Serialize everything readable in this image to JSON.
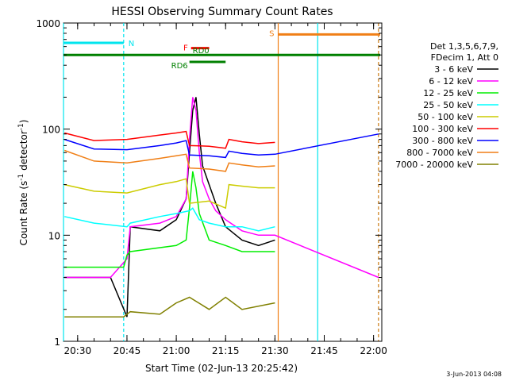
{
  "chart_data": {
    "type": "line",
    "title": "HESSI Observing Summary Count Rates",
    "xlabel": "Start Time (02-Jun-13 20:25:42)",
    "ylabel_main": "Count Rate (s",
    "ylabel_sup1": "-1",
    "ylabel_mid": " detector",
    "ylabel_sup2": "-1",
    "ylabel_end": ")",
    "yscale": "log",
    "ylim": [
      1,
      1000
    ],
    "xlim": [
      "20:25:42",
      "22:02:30"
    ],
    "x_ticks": [
      "20:30",
      "20:45",
      "21:00",
      "21:15",
      "21:30",
      "21:45",
      "22:00"
    ],
    "y_ticks": [
      "1",
      "10",
      "100",
      "1000"
    ],
    "footer_date": "3-Jun-2013 04:08",
    "legend_header": [
      "Det 1,3,5,6,7,9,",
      "FDecim 1, Att 0"
    ],
    "flags": [
      {
        "label": "N",
        "color": "#00e5ee",
        "start": "20:25:42",
        "end": "20:44:00",
        "level": 650
      },
      {
        "label": "S",
        "color": "#f07f16",
        "start": "21:31:00",
        "end": "22:02:00",
        "level": 780
      },
      {
        "label": "F",
        "color": "#ff0000",
        "start": "21:04:30",
        "end": "21:10:00",
        "level": 580
      },
      {
        "label": "RD0",
        "color": "#008000",
        "start": "20:25:42",
        "end": "22:02:00",
        "level": 500
      },
      {
        "label": "RD6",
        "color": "#008000",
        "start": "21:04:00",
        "end": "21:15:00",
        "level": 430
      }
    ],
    "vertical_lines": [
      {
        "time": "20:25:42",
        "color": "#00e5ee",
        "style": "solid"
      },
      {
        "time": "20:44:00",
        "color": "#00e5ee",
        "style": "dashed"
      },
      {
        "time": "21:31:00",
        "color": "#f07f16",
        "style": "solid"
      },
      {
        "time": "21:43:00",
        "color": "#00e5ee",
        "style": "solid"
      },
      {
        "time": "22:01:30",
        "color": "#00e5ee",
        "style": "dashed"
      },
      {
        "time": "22:01:30",
        "color": "#f07f16",
        "style": "dashed"
      }
    ],
    "series": [
      {
        "name": "3 - 6 keV",
        "color": "#000000",
        "points": [
          [
            "20:26",
            4
          ],
          [
            "20:40",
            4
          ],
          [
            "20:45",
            1.7
          ],
          [
            "20:46",
            12
          ],
          [
            "20:55",
            11
          ],
          [
            "21:00",
            14
          ],
          [
            "21:03",
            22
          ],
          [
            "21:04",
            60
          ],
          [
            "21:05",
            150
          ],
          [
            "21:06",
            200
          ],
          [
            "21:07",
            90
          ],
          [
            "21:08",
            45
          ],
          [
            "21:10",
            30
          ],
          [
            "21:12",
            20
          ],
          [
            "21:15",
            12
          ],
          [
            "21:20",
            9
          ],
          [
            "21:25",
            8
          ],
          [
            "21:30",
            9
          ]
        ]
      },
      {
        "name": "6 - 12 keV",
        "color": "#ff00ff",
        "points": [
          [
            "20:26",
            4
          ],
          [
            "20:40",
            4
          ],
          [
            "20:45",
            6
          ],
          [
            "20:46",
            12
          ],
          [
            "20:55",
            13
          ],
          [
            "21:00",
            15
          ],
          [
            "21:03",
            22
          ],
          [
            "21:04",
            80
          ],
          [
            "21:05",
            200
          ],
          [
            "21:06",
            150
          ],
          [
            "21:07",
            60
          ],
          [
            "21:08",
            32
          ],
          [
            "21:10",
            22
          ],
          [
            "21:12",
            17
          ],
          [
            "21:15",
            14
          ],
          [
            "21:20",
            11
          ],
          [
            "21:25",
            10
          ],
          [
            "21:30",
            10
          ],
          [
            "22:01:30",
            4
          ]
        ]
      },
      {
        "name": "12 - 25 keV",
        "color": "#00ee00",
        "points": [
          [
            "20:26",
            5
          ],
          [
            "20:44",
            5
          ],
          [
            "20:45",
            6.5
          ],
          [
            "20:46",
            7
          ],
          [
            "21:00",
            8
          ],
          [
            "21:03",
            9
          ],
          [
            "21:04",
            18
          ],
          [
            "21:05",
            40
          ],
          [
            "21:06",
            28
          ],
          [
            "21:07",
            16
          ],
          [
            "21:10",
            9
          ],
          [
            "21:15",
            8
          ],
          [
            "21:20",
            7
          ],
          [
            "21:25",
            7
          ],
          [
            "21:30",
            7
          ]
        ]
      },
      {
        "name": "25 - 50 keV",
        "color": "#00ffff",
        "points": [
          [
            "20:26",
            15
          ],
          [
            "20:35",
            13
          ],
          [
            "20:45",
            12
          ],
          [
            "20:46",
            13
          ],
          [
            "20:55",
            15
          ],
          [
            "21:00",
            16
          ],
          [
            "21:04",
            17
          ],
          [
            "21:05",
            18
          ],
          [
            "21:07",
            14
          ],
          [
            "21:10",
            13
          ],
          [
            "21:15",
            12
          ],
          [
            "21:20",
            12
          ],
          [
            "21:25",
            11
          ],
          [
            "21:30",
            12
          ]
        ]
      },
      {
        "name": "50 - 100 keV",
        "color": "#cccc00",
        "points": [
          [
            "20:26",
            30
          ],
          [
            "20:35",
            26
          ],
          [
            "20:45",
            25
          ],
          [
            "20:55",
            30
          ],
          [
            "21:00",
            32
          ],
          [
            "21:03",
            34
          ],
          [
            "21:04",
            20
          ],
          [
            "21:10",
            21
          ],
          [
            "21:15",
            18
          ],
          [
            "21:16",
            30
          ],
          [
            "21:20",
            29
          ],
          [
            "21:25",
            28
          ],
          [
            "21:30",
            28
          ]
        ]
      },
      {
        "name": "100 - 300 keV",
        "color": "#ff0000",
        "points": [
          [
            "20:26",
            92
          ],
          [
            "20:35",
            78
          ],
          [
            "20:45",
            80
          ],
          [
            "20:55",
            88
          ],
          [
            "21:00",
            92
          ],
          [
            "21:03",
            95
          ],
          [
            "21:04",
            70
          ],
          [
            "21:10",
            69
          ],
          [
            "21:15",
            66
          ],
          [
            "21:16",
            80
          ],
          [
            "21:20",
            76
          ],
          [
            "21:25",
            73
          ],
          [
            "21:30",
            75
          ]
        ]
      },
      {
        "name": "300 - 800 keV",
        "color": "#0000ff",
        "points": [
          [
            "20:26",
            80
          ],
          [
            "20:35",
            65
          ],
          [
            "20:45",
            64
          ],
          [
            "20:55",
            70
          ],
          [
            "21:00",
            74
          ],
          [
            "21:03",
            78
          ],
          [
            "21:04",
            57
          ],
          [
            "21:10",
            56
          ],
          [
            "21:15",
            54
          ],
          [
            "21:16",
            62
          ],
          [
            "21:20",
            59
          ],
          [
            "21:25",
            57
          ],
          [
            "21:30",
            58
          ],
          [
            "22:01:30",
            90
          ]
        ]
      },
      {
        "name": "800 - 7000 keV",
        "color": "#f07f16",
        "points": [
          [
            "20:26",
            63
          ],
          [
            "20:35",
            50
          ],
          [
            "20:45",
            48
          ],
          [
            "20:55",
            53
          ],
          [
            "21:00",
            56
          ],
          [
            "21:03",
            58
          ],
          [
            "21:04",
            43
          ],
          [
            "21:10",
            42
          ],
          [
            "21:15",
            40
          ],
          [
            "21:16",
            48
          ],
          [
            "21:20",
            46
          ],
          [
            "21:25",
            44
          ],
          [
            "21:30",
            45
          ]
        ]
      },
      {
        "name": "7000 - 20000 keV",
        "color": "#808000",
        "points": [
          [
            "20:26",
            1.7
          ],
          [
            "20:35",
            1.7
          ],
          [
            "20:44",
            1.7
          ],
          [
            "20:46",
            1.9
          ],
          [
            "20:55",
            1.8
          ],
          [
            "21:00",
            2.3
          ],
          [
            "21:04",
            2.6
          ],
          [
            "21:10",
            2.0
          ],
          [
            "21:15",
            2.6
          ],
          [
            "21:20",
            2.0
          ],
          [
            "21:30",
            2.3
          ]
        ]
      }
    ]
  }
}
